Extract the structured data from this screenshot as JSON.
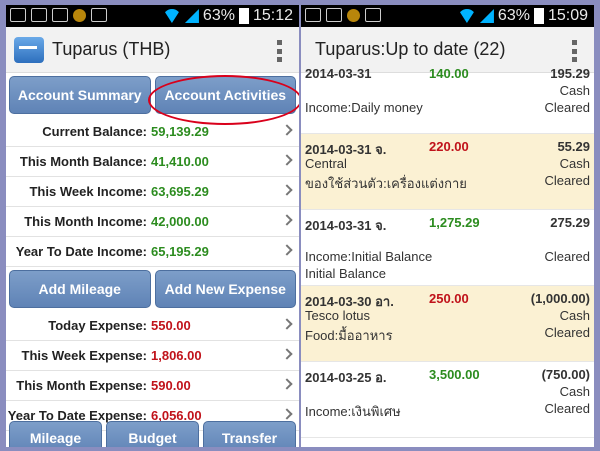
{
  "left": {
    "status": {
      "battery": "63%",
      "time": "15:12"
    },
    "title": "Tuparus (THB)",
    "buttons_top": {
      "summary": "Account Summary",
      "activities": "Account Activities"
    },
    "stats_income": [
      {
        "label": "Current Balance:",
        "value": "59,139.29"
      },
      {
        "label": "This Month Balance:",
        "value": "41,410.00"
      },
      {
        "label": "This Week Income:",
        "value": "63,695.29"
      },
      {
        "label": "This Month Income:",
        "value": "42,000.00"
      },
      {
        "label": "Year To Date Income:",
        "value": "65,195.29"
      }
    ],
    "buttons_mid": {
      "mileage": "Add Mileage",
      "expense": "Add New Expense"
    },
    "stats_expense": [
      {
        "label": "Today Expense:",
        "value": "550.00"
      },
      {
        "label": "This Week Expense:",
        "value": "1,806.00"
      },
      {
        "label": "This Month Expense:",
        "value": "590.00"
      },
      {
        "label": "Year To Date Expense:",
        "value": "6,056.00"
      }
    ],
    "tabs": {
      "mileage": "Mileage",
      "budget": "Budget",
      "transfer": "Transfer"
    },
    "colors": {
      "income": "#2c8c1f",
      "expense": "#c0121a",
      "highlight": "#d9001b"
    }
  },
  "right": {
    "status": {
      "battery": "63%",
      "time": "15:09"
    },
    "title": "Tuparus:Up to date (22)",
    "transactions": [
      {
        "date": "2014-03-31",
        "amount": "140.00",
        "balance": "195.29",
        "l2": "",
        "method": "Cash",
        "l3": "Income:Daily money",
        "status": "Cleared"
      },
      {
        "date": "2014-03-31 จ.",
        "amount": "220.00",
        "balance": "55.29",
        "l2": "Central",
        "method": "Cash",
        "l3": "ของใช้ส่วนตัว:เครื่องแต่งกาย",
        "status": "Cleared"
      },
      {
        "date": "2014-03-31 จ.",
        "amount": "1,275.29",
        "balance": "275.29",
        "l2": "",
        "method": "",
        "l3": "Income:Initial Balance",
        "status": "Cleared",
        "l4": "Initial Balance"
      },
      {
        "date": "2014-03-30 อา.",
        "amount": "250.00",
        "balance": "(1,000.00)",
        "l2": "Tesco lotus",
        "method": "Cash",
        "l3": "Food:มื้ออาหาร",
        "status": "Cleared"
      },
      {
        "date": "2014-03-25 อ.",
        "amount": "3,500.00",
        "balance": "(750.00)",
        "l2": "",
        "method": "Cash",
        "l3": "Income:เงินพิเศษ",
        "status": "Cleared"
      }
    ]
  }
}
